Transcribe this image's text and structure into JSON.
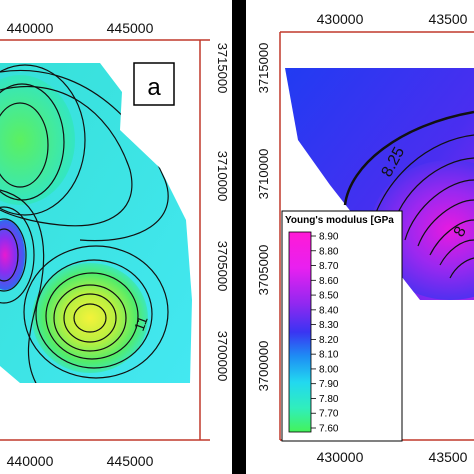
{
  "left_panel": {
    "label": "a",
    "x_ticks": [
      "440000",
      "445000"
    ],
    "y_ticks": [
      "3715000",
      "3710000",
      "3705000",
      "3700000"
    ],
    "contour_label": "11"
  },
  "right_panel": {
    "x_ticks": [
      "430000",
      "43500"
    ],
    "x_ticks_bottom": [
      "430000",
      "43500"
    ],
    "y_ticks": [
      "3715000",
      "3710000",
      "3705000",
      "3700000"
    ],
    "contour_labels": [
      "8.25",
      "8"
    ]
  },
  "legend": {
    "title": "Young's modulus [GPa",
    "labels": [
      "8.90",
      "8.80",
      "8.70",
      "8.60",
      "8.50",
      "8.40",
      "8.30",
      "8.20",
      "8.10",
      "8.00",
      "7.90",
      "7.80",
      "7.70",
      "7.60"
    ]
  },
  "colors": {
    "divider": "#000000",
    "axis_red": "#c0392b",
    "cyan": "#2ee6f0",
    "green": "#3ff07a",
    "yellow": "#e8f23a",
    "blue": "#2a3cf0",
    "magenta": "#c81ef0"
  }
}
